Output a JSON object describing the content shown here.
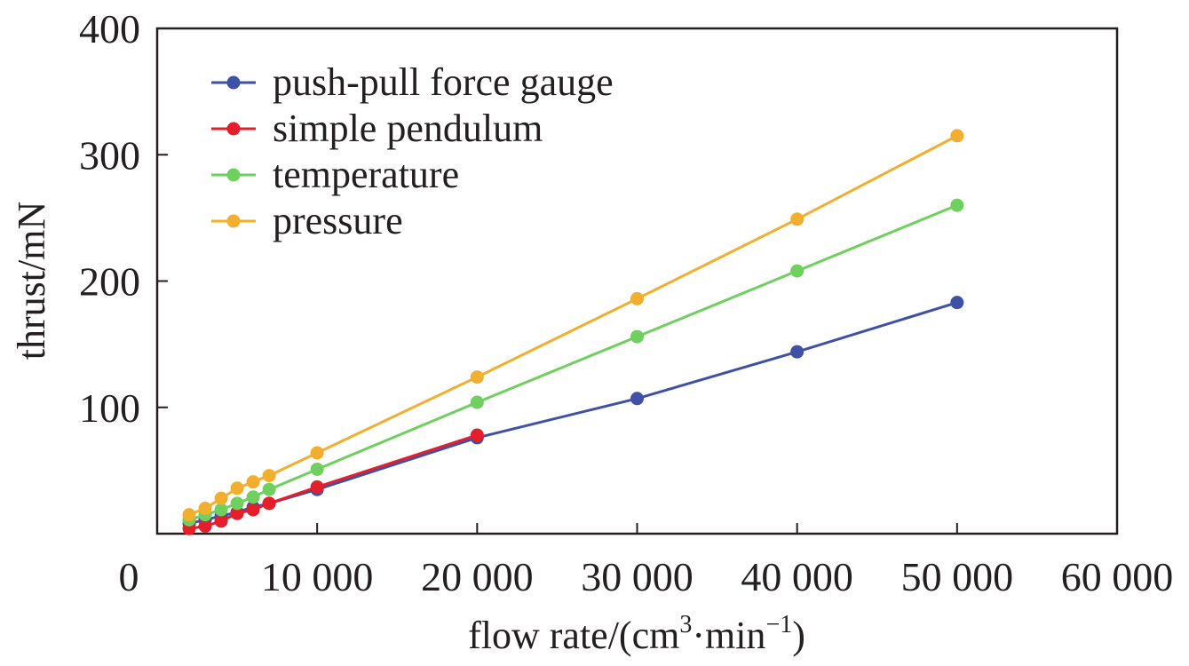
{
  "chart_data": {
    "type": "line",
    "title": "",
    "xlabel": {
      "base": "flow rate/(cm",
      "sup1": "3",
      "mid": "·min",
      "sup2": "−1",
      "end": ")"
    },
    "ylabel": "thrust/mN",
    "xlim": [
      0,
      60000
    ],
    "ylim": [
      0,
      400
    ],
    "xticks": [
      0,
      10000,
      20000,
      30000,
      40000,
      50000,
      60000
    ],
    "xtick_labels": [
      "0",
      "10 000",
      "20 000",
      "30 000",
      "40 000",
      "50 000",
      "60 000"
    ],
    "yticks": [
      100,
      200,
      300,
      400
    ],
    "ytick_labels": [
      "100",
      "200",
      "300",
      "400"
    ],
    "grid": false,
    "legend_position": "top-left",
    "series": [
      {
        "name": "push-pull force gauge",
        "color": "#3f51a5",
        "x": [
          2000,
          3000,
          4000,
          5000,
          6000,
          7000,
          10000,
          20000,
          30000,
          40000,
          50000
        ],
        "y": [
          8,
          11,
          14,
          17,
          21,
          24,
          35,
          76,
          107,
          144,
          183
        ]
      },
      {
        "name": "simple pendulum",
        "color": "#e41f2c",
        "x": [
          2000,
          3000,
          4000,
          5000,
          6000,
          7000,
          10000,
          20000
        ],
        "y": [
          4,
          6,
          10,
          16,
          19,
          24,
          37,
          78
        ]
      },
      {
        "name": "temperature",
        "color": "#6fcf5f",
        "x": [
          2000,
          3000,
          4000,
          5000,
          6000,
          7000,
          10000,
          20000,
          30000,
          40000,
          50000
        ],
        "y": [
          11,
          15,
          19,
          24,
          29,
          35,
          51,
          104,
          156,
          208,
          260
        ]
      },
      {
        "name": "pressure",
        "color": "#f2ae2e",
        "x": [
          2000,
          3000,
          4000,
          5000,
          6000,
          7000,
          10000,
          20000,
          30000,
          40000,
          50000
        ],
        "y": [
          15,
          20,
          28,
          36,
          41,
          46,
          64,
          124,
          186,
          249,
          315
        ]
      }
    ]
  }
}
